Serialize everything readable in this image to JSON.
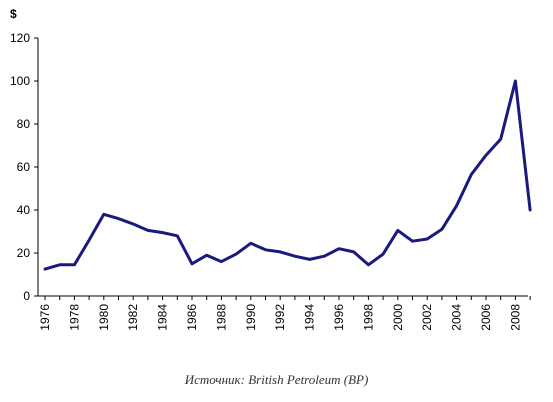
{
  "chart_data": {
    "type": "line",
    "ylabel": "$",
    "xlabel": "",
    "title": "",
    "ylim": [
      0,
      120
    ],
    "xlim": [
      1976,
      2009
    ],
    "y_ticks": [
      0,
      20,
      40,
      60,
      80,
      100,
      120
    ],
    "x_ticks": [
      1976,
      1978,
      1980,
      1982,
      1984,
      1986,
      1988,
      1990,
      1992,
      1994,
      1996,
      1998,
      2000,
      2002,
      2004,
      2006,
      2008
    ],
    "grid": false,
    "legend": "none",
    "series": [
      {
        "color": "#1a1a7e",
        "x": [
          1976,
          1977,
          1978,
          1979,
          1980,
          1981,
          1982,
          1983,
          1984,
          1985,
          1986,
          1987,
          1988,
          1989,
          1990,
          1991,
          1992,
          1993,
          1994,
          1995,
          1996,
          1997,
          1998,
          1999,
          2000,
          2001,
          2002,
          2003,
          2004,
          2005,
          2006,
          2007,
          2008,
          2009
        ],
        "values": [
          12.5,
          14.5,
          14.5,
          26,
          38,
          36,
          33.5,
          30.5,
          29.5,
          28,
          15,
          19,
          16,
          19.5,
          24.5,
          21.5,
          20.5,
          18.5,
          17,
          18.5,
          22,
          20.5,
          14.5,
          19.5,
          30.5,
          25.5,
          26.5,
          31,
          42,
          56.5,
          65.5,
          73,
          100,
          40
        ]
      }
    ]
  },
  "source_note": "Источник: British Petroleum (BP)"
}
